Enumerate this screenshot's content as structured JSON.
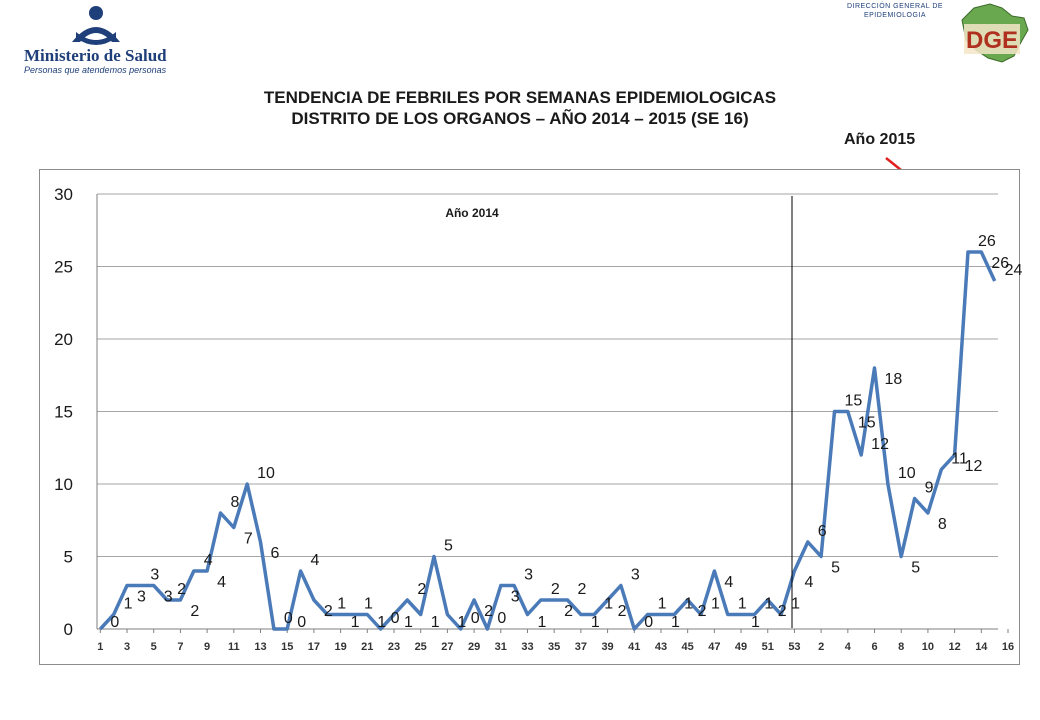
{
  "header": {
    "ministry_name": "Ministerio de Salud",
    "ministry_tagline": "Personas que atendemos personas",
    "dge_line1": "DIRECCIÓN GENERAL DE",
    "dge_line2": "EPIDEMIOLOGIA",
    "dge_logo_letters": "DGE"
  },
  "colors": {
    "line": "#4a7ab8",
    "arrow": "#e02020",
    "logo_blue": "#1f3f7a"
  },
  "chart_data": {
    "type": "line",
    "title_line1": "TENDENCIA DE FEBRILES POR SEMANAS EPIDEMIOLOGICAS",
    "title_line2": "DISTRITO DE LOS ORGANOS  – AÑO 2014 – 2015 (SE 16)",
    "annotations": {
      "year_2014": "Año 2014",
      "year_2015": "Año 2015"
    },
    "ylim": [
      0,
      30
    ],
    "yticks": [
      "0",
      "5",
      "10",
      "15",
      "20",
      "25",
      "30"
    ],
    "grid": true,
    "x_tick_labels": [
      "1",
      "3",
      "5",
      "7",
      "9",
      "11",
      "13",
      "15",
      "17",
      "19",
      "21",
      "23",
      "25",
      "27",
      "29",
      "31",
      "33",
      "35",
      "37",
      "39",
      "41",
      "43",
      "45",
      "47",
      "49",
      "51",
      "53",
      "2",
      "4",
      "6",
      "8",
      "10",
      "12",
      "14",
      "16"
    ],
    "series": [
      {
        "values": [
          0,
          1,
          3,
          3,
          3,
          2,
          2,
          4,
          4,
          8,
          7,
          10,
          6,
          0,
          0,
          4,
          2,
          1,
          1,
          1,
          1,
          0,
          1,
          2,
          1,
          5,
          1,
          0,
          2,
          0,
          3,
          3,
          1,
          2,
          2,
          2,
          1,
          1,
          2,
          3,
          0,
          1,
          1,
          1,
          2,
          1,
          4,
          1,
          1,
          1,
          2,
          1,
          4,
          6,
          5,
          15,
          15,
          12,
          18,
          10,
          5,
          9,
          8,
          11,
          12,
          26,
          26,
          24
        ]
      }
    ],
    "data_labels": [
      "0",
      "1",
      "3",
      "3",
      "3",
      "2",
      "2",
      "4",
      "4",
      "8",
      "7",
      "10",
      "6",
      "0",
      "0",
      "4",
      "2",
      "1",
      "1",
      "1",
      "1",
      "0",
      "1",
      "2",
      "1",
      "5",
      "1",
      "0",
      "2",
      "0",
      "3",
      "3",
      "1",
      "2",
      "2",
      "2",
      "1",
      "1",
      "2",
      "3",
      "0",
      "1",
      "1",
      "1",
      "2",
      "1",
      "4",
      "1",
      "1",
      "1",
      "2",
      "1",
      "4",
      "6",
      "5",
      "15",
      "15",
      "12",
      "18",
      "10",
      "5",
      "9",
      "8",
      "11",
      "12",
      "26",
      "26",
      "24"
    ]
  }
}
